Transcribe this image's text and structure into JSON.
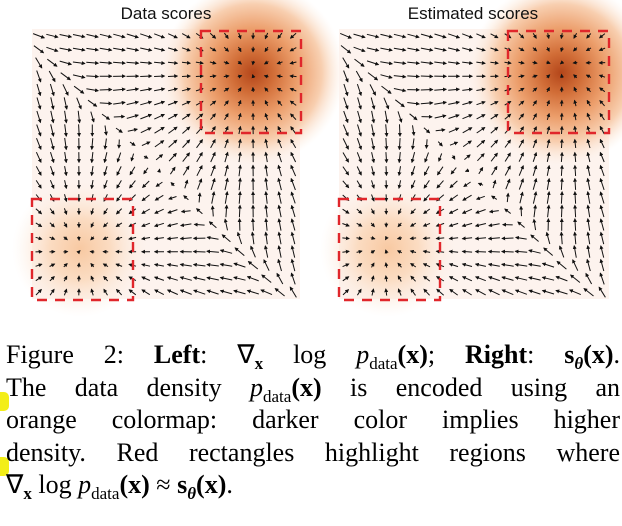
{
  "panels": [
    {
      "title": "Data scores",
      "kind": "data"
    },
    {
      "title": "Estimated scores",
      "kind": "estimated"
    }
  ],
  "colors": {
    "density": "#c8531e",
    "arrow": "#111111",
    "region_box": "#e0262b",
    "highlight": "#f3ee18"
  },
  "caption": {
    "fig_label": "Figure 2:",
    "left_bold": "Left",
    "right_bold": "Right",
    "line2": "The data density p_data(x) is encoded using an",
    "line3": "orange colormap: darker color implies higher",
    "line4": "density. Red rectangles highlight regions where",
    "line5": "∇x log p_data(x) ≈ sθ(x).",
    "math": {
      "grad": "∇",
      "x_sub": "x",
      "log": "log",
      "p": "p",
      "data_sub": "data",
      "x_arg": "(x)",
      "semicolon": ";",
      "s": "s",
      "theta": "θ",
      "period": ".",
      "approx": "≈",
      "t2a": "The data density",
      "t2b": "is encoded using an",
      "t3": "orange colormap: darker color implies higher",
      "t4": "density. Red rectangles highlight regions where"
    }
  }
}
